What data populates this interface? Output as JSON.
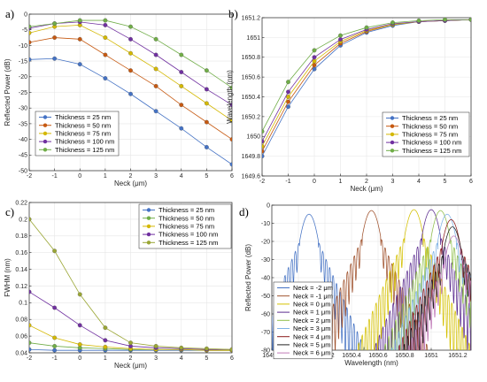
{
  "panel_labels": [
    "a)",
    "b)",
    "c)",
    "d)"
  ],
  "chart_data": [
    {
      "type": "line",
      "panel": "a)",
      "xlabel": "Neck (μm)",
      "ylabel": "Reflected Power (dB)",
      "xlim": [
        -2,
        6
      ],
      "ylim": [
        -50,
        0
      ],
      "xticks": [
        -2,
        -1,
        0,
        1,
        2,
        3,
        4,
        5,
        6
      ],
      "yticks": [
        -50,
        -45,
        -40,
        -35,
        -30,
        -25,
        -20,
        -15,
        -10,
        -5,
        0
      ],
      "legend_position": "bottom-left",
      "x": [
        -2,
        -1,
        0,
        1,
        2,
        3,
        4,
        5,
        6
      ],
      "series": [
        {
          "name": "Thickness = 25 nm",
          "color": "#4472c4",
          "values": [
            -14.5,
            -14.2,
            -16,
            -20.5,
            -25.5,
            -31,
            -36.5,
            -42.5,
            -48
          ]
        },
        {
          "name": "Thickness = 50 nm",
          "color": "#c65911",
          "values": [
            -9,
            -7.5,
            -8,
            -13,
            -18,
            -23,
            -29,
            -34.5,
            -40
          ]
        },
        {
          "name": "Thickness = 75 nm",
          "color": "#d4b800",
          "values": [
            -6,
            -4,
            -3.5,
            -7.5,
            -12.5,
            -17.5,
            -23,
            -28.5,
            -34
          ]
        },
        {
          "name": "Thickness = 100 nm",
          "color": "#7030a0",
          "values": [
            -4.5,
            -3,
            -2.5,
            -3.5,
            -8,
            -13,
            -18.5,
            -24,
            -29
          ]
        },
        {
          "name": "Thickness = 125 nm",
          "color": "#70ad47",
          "values": [
            -4,
            -3,
            -2,
            -2,
            -4,
            -8,
            -13,
            -18,
            -23.5
          ]
        }
      ]
    },
    {
      "type": "line",
      "panel": "b)",
      "xlabel": "Neck (μm)",
      "ylabel": "Wavelength (nm)",
      "xlim": [
        -2,
        6
      ],
      "ylim": [
        1649.6,
        1651.2
      ],
      "xticks": [
        -2,
        -1,
        0,
        1,
        2,
        3,
        4,
        5,
        6
      ],
      "yticks": [
        1649.6,
        1649.8,
        1650,
        1650.2,
        1650.4,
        1650.6,
        1650.8,
        1651,
        1651.2
      ],
      "legend_position": "bottom-right",
      "x": [
        -2,
        -1,
        0,
        1,
        2,
        3,
        4,
        5,
        6
      ],
      "series": [
        {
          "name": "Thickness = 25 nm",
          "color": "#4472c4",
          "values": [
            1649.8,
            1650.3,
            1650.68,
            1650.92,
            1651.05,
            1651.12,
            1651.16,
            1651.17,
            1651.18
          ]
        },
        {
          "name": "Thickness = 50 nm",
          "color": "#c65911",
          "values": [
            1649.85,
            1650.35,
            1650.72,
            1650.94,
            1651.06,
            1651.13,
            1651.16,
            1651.17,
            1651.18
          ]
        },
        {
          "name": "Thickness = 75 nm",
          "color": "#d4b800",
          "values": [
            1649.9,
            1650.4,
            1650.76,
            1650.96,
            1651.07,
            1651.13,
            1651.16,
            1651.17,
            1651.18
          ]
        },
        {
          "name": "Thickness = 100 nm",
          "color": "#7030a0",
          "values": [
            1649.95,
            1650.45,
            1650.8,
            1650.98,
            1651.08,
            1651.14,
            1651.16,
            1651.17,
            1651.18
          ]
        },
        {
          "name": "Thickness = 125 nm",
          "color": "#70ad47",
          "values": [
            1650.05,
            1650.55,
            1650.87,
            1651.02,
            1651.1,
            1651.15,
            1651.17,
            1651.18,
            1651.18
          ]
        }
      ]
    },
    {
      "type": "line",
      "panel": "c)",
      "xlabel": "Neck (μm)",
      "ylabel": "FWHM (nm)",
      "xlim": [
        -2,
        6
      ],
      "ylim": [
        0.04,
        0.22
      ],
      "xticks": [
        -2,
        -1,
        0,
        1,
        2,
        3,
        4,
        5,
        6
      ],
      "yticks": [
        0.04,
        0.06,
        0.08,
        0.1,
        0.12,
        0.14,
        0.16,
        0.18,
        0.2,
        0.22
      ],
      "legend_position": "top-right",
      "x": [
        -2,
        -1,
        0,
        1,
        2,
        3,
        4,
        5,
        6
      ],
      "series": [
        {
          "name": "Thickness = 25 nm",
          "color": "#4472c4",
          "values": [
            0.044,
            0.043,
            0.043,
            0.043,
            0.043,
            0.043,
            0.043,
            0.043,
            0.043
          ]
        },
        {
          "name": "Thickness = 50 nm",
          "color": "#70ad47",
          "values": [
            0.052,
            0.048,
            0.046,
            0.045,
            0.044,
            0.044,
            0.044,
            0.043,
            0.043
          ]
        },
        {
          "name": "Thickness = 75 nm",
          "color": "#d4b800",
          "values": [
            0.073,
            0.058,
            0.05,
            0.047,
            0.045,
            0.044,
            0.044,
            0.043,
            0.043
          ]
        },
        {
          "name": "Thickness = 100 nm",
          "color": "#7030a0",
          "values": [
            0.113,
            0.094,
            0.073,
            0.055,
            0.048,
            0.046,
            0.045,
            0.044,
            0.044
          ]
        },
        {
          "name": "Thickness = 125 nm",
          "color": "#9aa634",
          "values": [
            0.2,
            0.162,
            0.11,
            0.07,
            0.052,
            0.048,
            0.046,
            0.045,
            0.044
          ]
        }
      ]
    },
    {
      "type": "line",
      "panel": "d)",
      "xlabel": "Wavelength (nm)",
      "ylabel": "Reflected Power (dB)",
      "xlim": [
        1649.8,
        1651.3
      ],
      "ylim": [
        -80,
        0
      ],
      "xticks": [
        1649.8,
        1650,
        1650.2,
        1650.4,
        1650.6,
        1650.8,
        1651,
        1651.2
      ],
      "yticks": [
        -80,
        -70,
        -60,
        -50,
        -40,
        -30,
        -20,
        -10,
        0
      ],
      "legend_position": "bottom-left",
      "series": [
        {
          "name": "Neck = -2 μm",
          "color": "#4472c4",
          "peak_x": 1650.08,
          "peak_y": -5
        },
        {
          "name": "Neck = -1 μm",
          "color": "#a0522d",
          "peak_x": 1650.55,
          "peak_y": -3
        },
        {
          "name": "Neck = 0 μm",
          "color": "#d4c000",
          "peak_x": 1650.87,
          "peak_y": -2.5
        },
        {
          "name": "Neck = 1 μm",
          "color": "#5b2c8f",
          "peak_x": 1651.0,
          "peak_y": -2.5
        },
        {
          "name": "Neck = 2 μm",
          "color": "#8fbf4a",
          "peak_x": 1651.07,
          "peak_y": -3
        },
        {
          "name": "Neck = 3 μm",
          "color": "#7fb2e5",
          "peak_x": 1651.12,
          "peak_y": -5
        },
        {
          "name": "Neck = 4 μm",
          "color": "#8b1a1a",
          "peak_x": 1651.15,
          "peak_y": -8
        },
        {
          "name": "Neck = 5 μm",
          "color": "#222222",
          "peak_x": 1651.16,
          "peak_y": -12
        },
        {
          "name": "Neck = 6 μm",
          "color": "#c07ab8",
          "peak_x": 1651.17,
          "peak_y": -17
        }
      ]
    }
  ]
}
